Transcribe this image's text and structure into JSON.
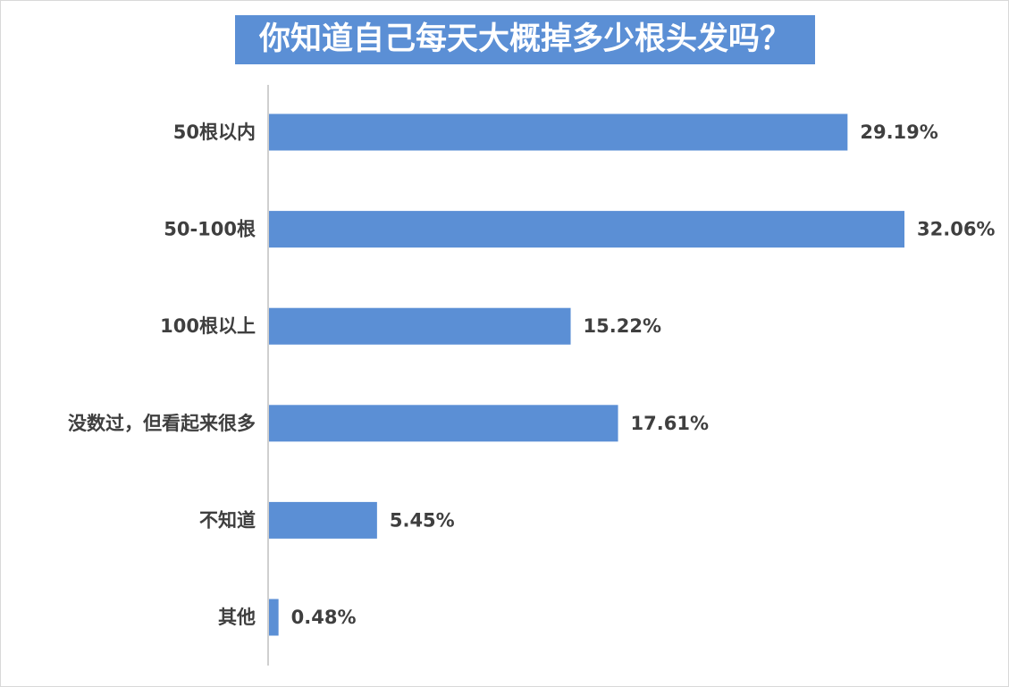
{
  "chart_data": {
    "type": "bar",
    "orientation": "horizontal",
    "title": "你知道自己每天大概掉多少根头发吗？",
    "categories": [
      "50根以内",
      "50-100根",
      "100根以上",
      "没数过，但看起来很多",
      "不知道",
      "其他"
    ],
    "values": [
      29.19,
      32.06,
      15.22,
      17.61,
      5.45,
      0.48
    ],
    "value_labels": [
      "29.19%",
      "32.06%",
      "15.22%",
      "17.61%",
      "5.45%",
      "0.48%"
    ],
    "unit": "%",
    "xlim": [
      0,
      32.06
    ],
    "grid": false,
    "legend": "none",
    "colors": {
      "bar": "#5b8fd5",
      "title_bg": "#5b8fd5",
      "title_text": "#ffffff",
      "text": "#3f3f3f",
      "axis": "#bfbfbf"
    }
  }
}
